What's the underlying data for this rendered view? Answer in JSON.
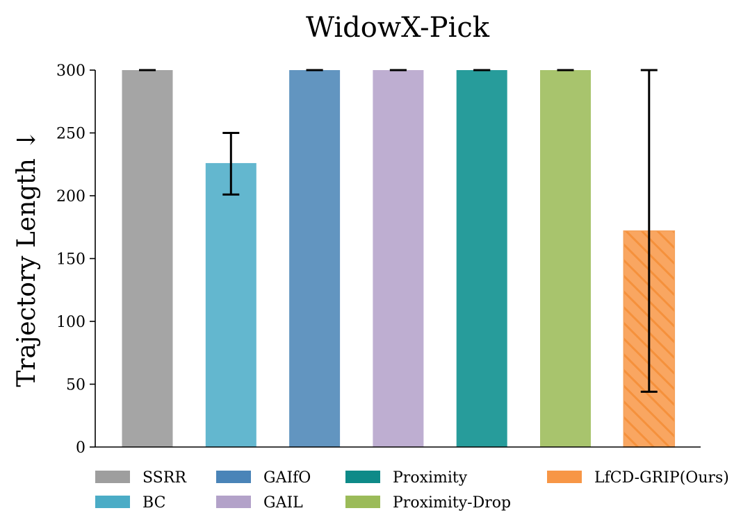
{
  "chart_data": {
    "type": "bar",
    "title": "WidowX-Pick",
    "xlabel": "",
    "ylabel": "Trajectory Length ↓",
    "ylim": [
      0,
      300
    ],
    "yticks": [
      0,
      50,
      100,
      150,
      200,
      250,
      300
    ],
    "grid": false,
    "legend_position": "bottom",
    "categories": [
      "SSRR",
      "BC",
      "GAIfO",
      "GAIL",
      "Proximity",
      "Proximity-Drop",
      "LfCD-GRIP(Ours)"
    ],
    "values": [
      300,
      226,
      300,
      300,
      300,
      300,
      172
    ],
    "error_bars": [
      {
        "low": 300,
        "high": 300
      },
      {
        "low": 201,
        "high": 250
      },
      {
        "low": 300,
        "high": 300
      },
      {
        "low": 300,
        "high": 300
      },
      {
        "low": 300,
        "high": 300
      },
      {
        "low": 300,
        "high": 300
      },
      {
        "low": 44,
        "high": 300
      }
    ],
    "colors": [
      "#a5a5a5",
      "#63b7cf",
      "#6295c0",
      "#beaed1",
      "#279c9b",
      "#a8c46d",
      "#f9a661"
    ],
    "legend_colors": [
      "#9e9e9e",
      "#4bacc6",
      "#4a84b8",
      "#b3a2c9",
      "#0e8a88",
      "#9bbb59",
      "#f79646"
    ],
    "hatched": [
      false,
      false,
      false,
      false,
      false,
      false,
      true
    ]
  }
}
